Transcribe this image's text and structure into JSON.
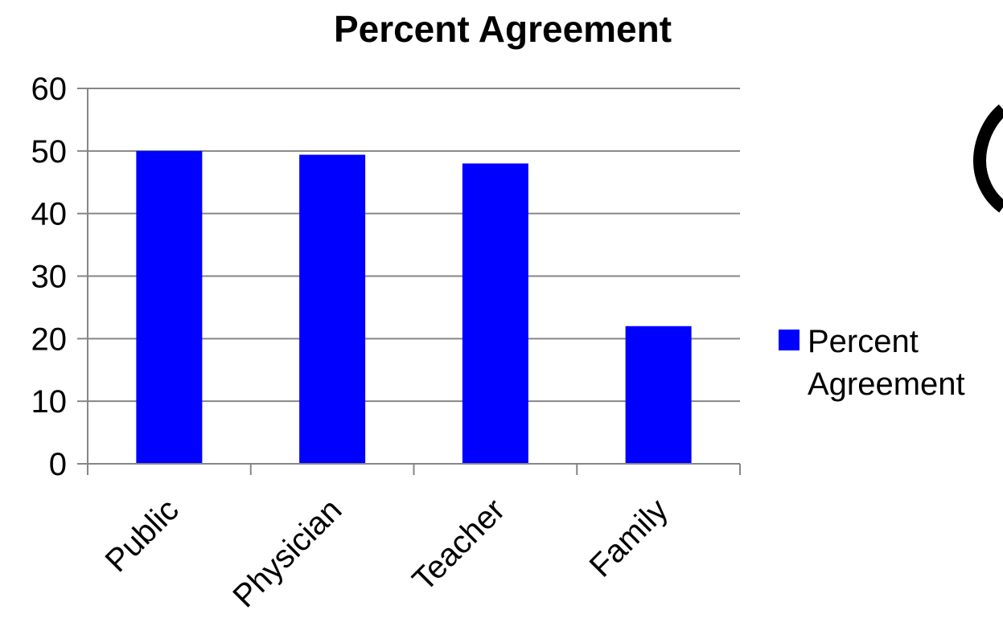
{
  "chart_data": {
    "type": "bar",
    "title": "Percent Agreement",
    "categories": [
      "Public",
      "Physician",
      "Teacher",
      "Family"
    ],
    "series": [
      {
        "name": "Percent Agreement",
        "values": [
          50,
          49.4,
          48,
          22
        ],
        "color": "#0000ff"
      }
    ],
    "ylim": [
      0,
      60
    ],
    "yticks": [
      0,
      10,
      20,
      30,
      40,
      50,
      60
    ],
    "grid": true,
    "legend": "right",
    "xlabel": "",
    "ylabel": ""
  },
  "colors": {
    "bar": "#0000ff",
    "grid": "#868686",
    "axis": "#868686"
  }
}
